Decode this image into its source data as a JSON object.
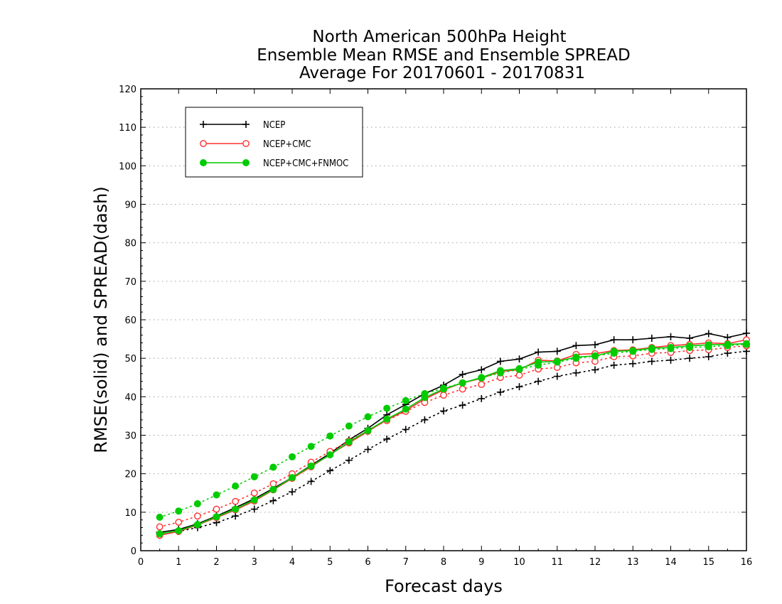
{
  "chart_data": {
    "type": "line",
    "title_lines": [
      "North American 500hPa Height",
      "Ensemble Mean RMSE and Ensemble SPREAD",
      "Average For 20170601 - 20170831"
    ],
    "xlabel": "Forecast days",
    "ylabel": "RMSE(solid) and SPREAD(dash)",
    "xlim": [
      0,
      16
    ],
    "ylim": [
      0,
      120
    ],
    "xticks": [
      0,
      1,
      2,
      3,
      4,
      5,
      6,
      7,
      8,
      9,
      10,
      11,
      12,
      13,
      14,
      15,
      16
    ],
    "yticks": [
      0,
      10,
      20,
      30,
      40,
      50,
      60,
      70,
      80,
      90,
      100,
      110,
      120
    ],
    "grid": true,
    "legend_position": "top-left",
    "x": [
      0.5,
      1,
      1.5,
      2,
      2.5,
      3,
      3.5,
      4,
      4.5,
      5,
      5.5,
      6,
      6.5,
      7,
      7.5,
      8,
      8.5,
      9,
      9.5,
      10,
      10.5,
      11,
      11.5,
      12,
      12.5,
      13,
      13.5,
      14,
      14.5,
      15,
      15.5,
      16
    ],
    "series": [
      {
        "name": "NCEP",
        "kind": "rmse",
        "color": "#000000",
        "marker": "plus",
        "values": [
          4.8,
          5.5,
          7.0,
          9.0,
          11.2,
          13.5,
          16.2,
          19.0,
          22.2,
          25.3,
          28.8,
          31.8,
          35.3,
          38.0,
          40.8,
          43.0,
          45.8,
          47.0,
          49.2,
          49.8,
          51.6,
          51.8,
          53.3,
          53.5,
          54.8,
          54.8,
          55.2,
          55.6,
          55.2,
          56.4,
          55.4,
          56.5
        ]
      },
      {
        "name": "NCEP",
        "kind": "spread",
        "color": "#000000",
        "marker": "plus",
        "values": [
          4.5,
          5.0,
          6.0,
          7.3,
          9.0,
          10.8,
          13.0,
          15.3,
          18.0,
          20.8,
          23.5,
          26.3,
          29.0,
          31.5,
          34.0,
          36.3,
          37.8,
          39.5,
          41.2,
          42.6,
          44.0,
          45.3,
          46.2,
          47.0,
          48.2,
          48.6,
          49.2,
          49.5,
          50.0,
          50.4,
          51.3,
          51.8
        ]
      },
      {
        "name": "NCEP+CMC",
        "kind": "rmse",
        "color": "#ff3030",
        "marker": "open-circle",
        "values": [
          4.0,
          5.0,
          6.7,
          8.6,
          10.6,
          12.9,
          15.8,
          18.8,
          21.8,
          25.0,
          28.0,
          31.0,
          34.0,
          36.4,
          39.4,
          41.8,
          43.6,
          44.8,
          46.6,
          47.0,
          49.5,
          49.3,
          51.0,
          51.2,
          52.0,
          52.2,
          52.8,
          53.3,
          53.6,
          54.0,
          53.8,
          54.8
        ]
      },
      {
        "name": "NCEP+CMC",
        "kind": "spread",
        "color": "#ff3030",
        "marker": "open-circle",
        "values": [
          6.2,
          7.4,
          9.0,
          10.8,
          12.8,
          15.0,
          17.4,
          20.0,
          23.0,
          25.8,
          28.5,
          31.2,
          33.8,
          36.2,
          38.5,
          40.4,
          42.0,
          43.2,
          45.0,
          45.6,
          47.2,
          47.6,
          48.8,
          49.2,
          50.4,
          50.6,
          51.3,
          51.5,
          52.0,
          52.2,
          52.8,
          53.2
        ]
      },
      {
        "name": "NCEP+CMC+FNMOC",
        "kind": "rmse",
        "color": "#00cc00",
        "marker": "filled-circle",
        "values": [
          4.4,
          5.2,
          6.8,
          8.8,
          10.8,
          13.2,
          15.9,
          19.0,
          22.0,
          24.9,
          28.3,
          31.2,
          34.2,
          36.8,
          39.8,
          42.0,
          43.6,
          45.0,
          46.8,
          47.3,
          49.0,
          49.2,
          50.3,
          50.6,
          51.8,
          52.0,
          52.6,
          52.8,
          53.2,
          53.5,
          53.6,
          53.8
        ]
      },
      {
        "name": "NCEP+CMC+FNMOC",
        "kind": "spread",
        "color": "#00cc00",
        "marker": "filled-circle",
        "values": [
          8.7,
          10.3,
          12.2,
          14.5,
          16.8,
          19.2,
          21.7,
          24.4,
          27.1,
          29.8,
          32.4,
          34.8,
          37.0,
          39.0,
          40.8,
          42.2,
          43.6,
          44.9,
          46.2,
          47.1,
          48.2,
          49.0,
          50.0,
          50.6,
          51.3,
          51.8,
          52.3,
          52.5,
          52.8,
          53.0,
          53.3,
          53.6
        ]
      }
    ]
  }
}
